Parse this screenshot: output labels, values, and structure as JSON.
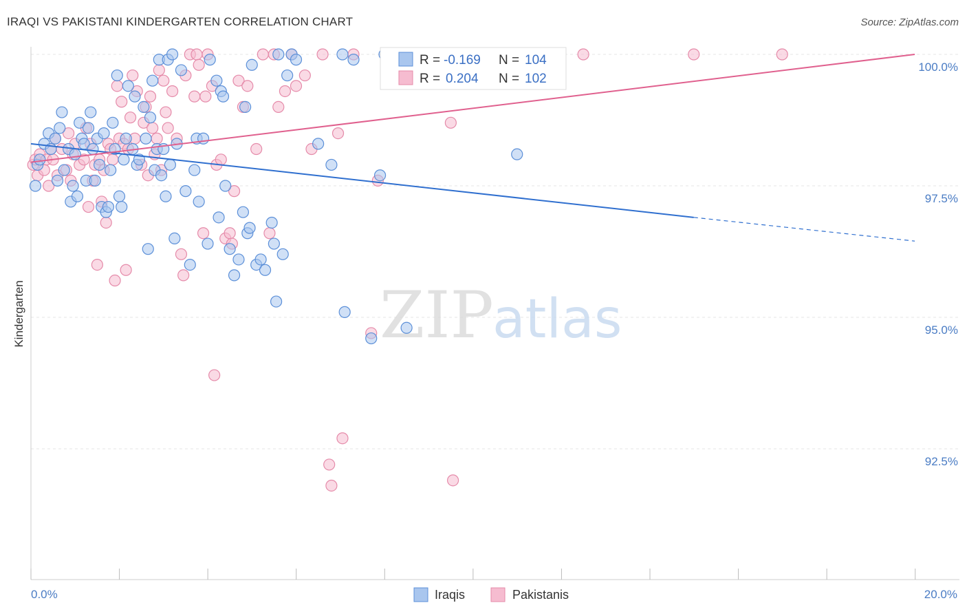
{
  "title": "IRAQI VS PAKISTANI KINDERGARTEN CORRELATION CHART",
  "source": "Source: ZipAtlas.com",
  "watermark": {
    "zip": "ZIP",
    "atlas": "atlas"
  },
  "colors": {
    "iraqis_fill": "#a9c6ee",
    "iraqis_stroke": "#5b8fd8",
    "iraqis_line": "#2f6fcf",
    "pakistanis_fill": "#f6bcd0",
    "pakistanis_stroke": "#e58aa9",
    "pakistanis_line": "#e0608e",
    "grid": "#e6e6e6",
    "axis_label": "#4a7cc4"
  },
  "legend": {
    "rows": [
      {
        "r_label": "R =",
        "r_value": "-0.169",
        "n_label": "N =",
        "n_value": "104"
      },
      {
        "r_label": "R =",
        "r_value": "0.204",
        "n_label": "N =",
        "n_value": "102"
      }
    ]
  },
  "chart_data": {
    "type": "scatter",
    "xlabel": "",
    "ylabel": "Kindergarten",
    "xlim": [
      0,
      20
    ],
    "ylim": [
      90.5,
      100.35
    ],
    "x_tick_labels": [
      "0.0%",
      "20.0%"
    ],
    "y_ticks": [
      {
        "value": 100.0,
        "label": "100.0%"
      },
      {
        "value": 97.5,
        "label": "97.5%"
      },
      {
        "value": 95.0,
        "label": "95.0%"
      },
      {
        "value": 92.5,
        "label": "92.5%"
      }
    ],
    "grid": "horizontal dashed",
    "legend_position": "top-center and bottom",
    "series": [
      {
        "name": "Iraqis",
        "trend": {
          "x": [
            0,
            15,
            20
          ],
          "y": [
            98.3,
            96.9,
            96.45
          ],
          "dashed_from": 15
        },
        "points": [
          [
            0.1,
            97.5
          ],
          [
            0.15,
            97.9
          ],
          [
            0.2,
            98.0
          ],
          [
            0.3,
            98.3
          ],
          [
            0.4,
            98.5
          ],
          [
            0.45,
            98.2
          ],
          [
            0.55,
            98.4
          ],
          [
            0.6,
            97.6
          ],
          [
            0.65,
            98.6
          ],
          [
            0.7,
            98.9
          ],
          [
            0.75,
            97.8
          ],
          [
            0.85,
            98.2
          ],
          [
            0.9,
            97.2
          ],
          [
            0.95,
            97.5
          ],
          [
            1.0,
            98.1
          ],
          [
            1.05,
            97.3
          ],
          [
            1.1,
            98.7
          ],
          [
            1.15,
            98.4
          ],
          [
            1.2,
            98.3
          ],
          [
            1.25,
            97.6
          ],
          [
            1.3,
            98.6
          ],
          [
            1.35,
            98.9
          ],
          [
            1.4,
            98.2
          ],
          [
            1.45,
            97.6
          ],
          [
            1.5,
            98.4
          ],
          [
            1.55,
            97.9
          ],
          [
            1.6,
            97.1
          ],
          [
            1.65,
            98.5
          ],
          [
            1.7,
            97.0
          ],
          [
            1.75,
            97.1
          ],
          [
            1.8,
            97.8
          ],
          [
            1.85,
            98.7
          ],
          [
            1.9,
            98.2
          ],
          [
            1.95,
            99.6
          ],
          [
            2.0,
            97.3
          ],
          [
            2.05,
            97.1
          ],
          [
            2.1,
            98.0
          ],
          [
            2.15,
            98.4
          ],
          [
            2.2,
            99.4
          ],
          [
            2.3,
            98.2
          ],
          [
            2.35,
            99.2
          ],
          [
            2.4,
            97.9
          ],
          [
            2.45,
            98.0
          ],
          [
            2.55,
            99.0
          ],
          [
            2.6,
            98.4
          ],
          [
            2.65,
            96.3
          ],
          [
            2.7,
            98.8
          ],
          [
            2.75,
            99.5
          ],
          [
            2.8,
            97.8
          ],
          [
            2.85,
            98.2
          ],
          [
            2.9,
            99.9
          ],
          [
            2.95,
            97.7
          ],
          [
            3.0,
            98.2
          ],
          [
            3.05,
            97.3
          ],
          [
            3.1,
            99.9
          ],
          [
            3.15,
            97.9
          ],
          [
            3.2,
            100.0
          ],
          [
            3.25,
            96.5
          ],
          [
            3.3,
            98.3
          ],
          [
            3.4,
            99.7
          ],
          [
            3.5,
            97.4
          ],
          [
            3.6,
            96.0
          ],
          [
            3.7,
            97.8
          ],
          [
            3.75,
            98.4
          ],
          [
            3.8,
            97.2
          ],
          [
            3.9,
            98.4
          ],
          [
            4.0,
            96.4
          ],
          [
            4.05,
            99.9
          ],
          [
            4.2,
            99.5
          ],
          [
            4.25,
            96.9
          ],
          [
            4.3,
            99.3
          ],
          [
            4.35,
            99.2
          ],
          [
            4.4,
            97.5
          ],
          [
            4.5,
            96.3
          ],
          [
            4.6,
            95.8
          ],
          [
            4.7,
            96.1
          ],
          [
            4.8,
            97.0
          ],
          [
            4.85,
            99.0
          ],
          [
            4.9,
            96.6
          ],
          [
            4.95,
            96.7
          ],
          [
            5.0,
            99.8
          ],
          [
            5.1,
            96.0
          ],
          [
            5.2,
            96.1
          ],
          [
            5.3,
            95.9
          ],
          [
            5.45,
            96.8
          ],
          [
            5.5,
            96.4
          ],
          [
            5.55,
            95.3
          ],
          [
            5.6,
            100.0
          ],
          [
            5.7,
            96.2
          ],
          [
            5.8,
            99.6
          ],
          [
            5.9,
            100.0
          ],
          [
            6.0,
            99.9
          ],
          [
            6.5,
            98.3
          ],
          [
            6.8,
            97.9
          ],
          [
            7.05,
            100.0
          ],
          [
            7.1,
            95.1
          ],
          [
            7.3,
            99.9
          ],
          [
            7.7,
            94.6
          ],
          [
            7.9,
            97.7
          ],
          [
            8.0,
            100.0
          ],
          [
            8.5,
            94.8
          ],
          [
            9.5,
            100.0
          ],
          [
            11.0,
            98.1
          ],
          [
            11.5,
            100.0
          ]
        ]
      },
      {
        "name": "Pakistanis",
        "trend": {
          "x": [
            0,
            20
          ],
          "y": [
            97.95,
            100.0
          ]
        },
        "points": [
          [
            0.05,
            97.9
          ],
          [
            0.1,
            98.0
          ],
          [
            0.15,
            97.7
          ],
          [
            0.2,
            98.1
          ],
          [
            0.3,
            97.8
          ],
          [
            0.35,
            98.0
          ],
          [
            0.4,
            97.5
          ],
          [
            0.45,
            98.2
          ],
          [
            0.5,
            98.0
          ],
          [
            0.55,
            98.4
          ],
          [
            0.6,
            97.7
          ],
          [
            0.7,
            98.2
          ],
          [
            0.8,
            97.8
          ],
          [
            0.85,
            98.5
          ],
          [
            0.9,
            97.6
          ],
          [
            0.95,
            98.1
          ],
          [
            1.0,
            98.3
          ],
          [
            1.1,
            97.9
          ],
          [
            1.2,
            98.0
          ],
          [
            1.25,
            98.6
          ],
          [
            1.3,
            97.1
          ],
          [
            1.35,
            98.3
          ],
          [
            1.4,
            97.6
          ],
          [
            1.45,
            97.9
          ],
          [
            1.5,
            96.0
          ],
          [
            1.55,
            98.0
          ],
          [
            1.6,
            97.2
          ],
          [
            1.65,
            97.8
          ],
          [
            1.7,
            96.8
          ],
          [
            1.75,
            98.3
          ],
          [
            1.8,
            98.2
          ],
          [
            1.85,
            98.0
          ],
          [
            1.9,
            95.7
          ],
          [
            1.95,
            99.4
          ],
          [
            2.0,
            98.4
          ],
          [
            2.05,
            99.1
          ],
          [
            2.1,
            98.3
          ],
          [
            2.15,
            95.9
          ],
          [
            2.2,
            98.2
          ],
          [
            2.25,
            98.8
          ],
          [
            2.3,
            99.6
          ],
          [
            2.35,
            98.4
          ],
          [
            2.4,
            99.3
          ],
          [
            2.5,
            97.9
          ],
          [
            2.55,
            98.7
          ],
          [
            2.6,
            99.0
          ],
          [
            2.65,
            97.7
          ],
          [
            2.7,
            99.2
          ],
          [
            2.75,
            98.6
          ],
          [
            2.8,
            98.1
          ],
          [
            2.85,
            98.4
          ],
          [
            2.9,
            99.7
          ],
          [
            2.95,
            97.8
          ],
          [
            3.0,
            99.5
          ],
          [
            3.05,
            98.9
          ],
          [
            3.1,
            98.6
          ],
          [
            3.2,
            99.3
          ],
          [
            3.3,
            98.4
          ],
          [
            3.4,
            96.2
          ],
          [
            3.45,
            95.8
          ],
          [
            3.5,
            99.6
          ],
          [
            3.6,
            100.0
          ],
          [
            3.7,
            99.2
          ],
          [
            3.75,
            100.0
          ],
          [
            3.8,
            99.8
          ],
          [
            3.9,
            96.6
          ],
          [
            3.95,
            99.2
          ],
          [
            4.0,
            100.0
          ],
          [
            4.1,
            99.4
          ],
          [
            4.15,
            93.9
          ],
          [
            4.2,
            97.9
          ],
          [
            4.3,
            98.0
          ],
          [
            4.4,
            96.5
          ],
          [
            4.5,
            96.6
          ],
          [
            4.55,
            96.4
          ],
          [
            4.6,
            97.4
          ],
          [
            4.7,
            99.5
          ],
          [
            4.8,
            99.0
          ],
          [
            4.9,
            99.4
          ],
          [
            5.1,
            98.2
          ],
          [
            5.25,
            100.0
          ],
          [
            5.4,
            96.6
          ],
          [
            5.5,
            100.0
          ],
          [
            5.6,
            99.0
          ],
          [
            5.75,
            99.3
          ],
          [
            5.9,
            100.0
          ],
          [
            6.0,
            99.4
          ],
          [
            6.2,
            99.6
          ],
          [
            6.35,
            98.2
          ],
          [
            6.6,
            100.0
          ],
          [
            6.75,
            92.2
          ],
          [
            6.8,
            91.8
          ],
          [
            6.95,
            98.5
          ],
          [
            7.05,
            92.7
          ],
          [
            7.3,
            100.0
          ],
          [
            7.7,
            94.7
          ],
          [
            7.85,
            97.6
          ],
          [
            9.5,
            98.7
          ],
          [
            9.55,
            91.9
          ],
          [
            12.5,
            100.0
          ],
          [
            15.0,
            100.0
          ],
          [
            17.0,
            100.0
          ]
        ]
      }
    ]
  }
}
